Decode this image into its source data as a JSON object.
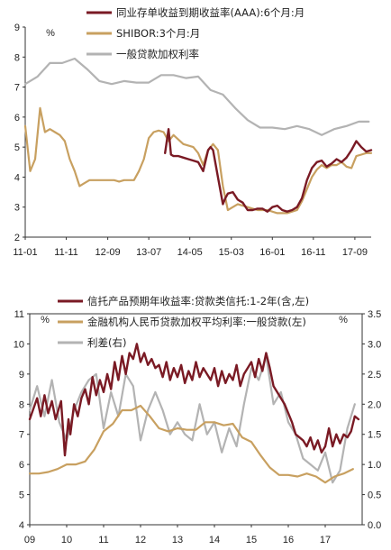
{
  "chart_data": [
    {
      "type": "line",
      "y_unit": "%",
      "ylim": [
        2,
        9
      ],
      "yticks": [
        2,
        3,
        4,
        5,
        6,
        7,
        8,
        9
      ],
      "xlim": [
        2011.0,
        2018.0
      ],
      "xticks": [
        "11-01",
        "11-11",
        "12-09",
        "13-07",
        "14-05",
        "15-03",
        "16-01",
        "16-11",
        "17-09"
      ],
      "xtick_positions": [
        2011.0,
        2011.83,
        2012.67,
        2013.5,
        2014.33,
        2015.17,
        2016.0,
        2016.83,
        2017.67
      ],
      "grid": false,
      "legend_position": "top-right",
      "series": [
        {
          "name": "同业存单收益到期收益率(AAA):6个月:月",
          "color": "#7a1a24",
          "x": [
            2013.83,
            2013.9,
            2013.95,
            2014.0,
            2014.1,
            2014.2,
            2014.3,
            2014.4,
            2014.5,
            2014.6,
            2014.7,
            2014.75,
            2014.8,
            2014.9,
            2015.0,
            2015.05,
            2015.1,
            2015.2,
            2015.3,
            2015.35,
            2015.4,
            2015.5,
            2015.6,
            2015.7,
            2015.8,
            2015.9,
            2016.0,
            2016.1,
            2016.2,
            2016.3,
            2016.4,
            2016.5,
            2016.6,
            2016.7,
            2016.8,
            2016.9,
            2017.0,
            2017.1,
            2017.2,
            2017.3,
            2017.4,
            2017.5,
            2017.6,
            2017.7,
            2017.8,
            2017.9,
            2018.0
          ],
          "values": [
            4.8,
            5.6,
            4.75,
            4.7,
            4.7,
            4.65,
            4.6,
            4.55,
            4.5,
            4.2,
            4.9,
            5.0,
            4.9,
            4.0,
            3.1,
            3.3,
            3.45,
            3.5,
            3.25,
            3.2,
            3.15,
            2.9,
            2.9,
            2.95,
            2.95,
            2.85,
            3.0,
            3.05,
            2.9,
            2.85,
            2.9,
            3.0,
            3.3,
            3.9,
            4.3,
            4.5,
            4.55,
            4.35,
            4.45,
            4.6,
            4.5,
            4.65,
            4.9,
            5.2,
            5.0,
            4.85,
            4.9
          ]
        },
        {
          "name": "SHIBOR:3个月:月",
          "color": "#c8a060",
          "x": [
            2011.0,
            2011.1,
            2011.2,
            2011.3,
            2011.4,
            2011.5,
            2011.6,
            2011.7,
            2011.8,
            2011.9,
            2012.0,
            2012.1,
            2012.2,
            2012.3,
            2012.4,
            2012.5,
            2012.6,
            2012.7,
            2012.8,
            2012.9,
            2013.0,
            2013.1,
            2013.2,
            2013.3,
            2013.4,
            2013.5,
            2013.6,
            2013.7,
            2013.8,
            2013.9,
            2014.0,
            2014.2,
            2014.4,
            2014.5,
            2014.6,
            2014.7,
            2014.8,
            2014.9,
            2015.0,
            2015.1,
            2015.2,
            2015.3,
            2015.5,
            2015.7,
            2015.9,
            2016.1,
            2016.3,
            2016.5,
            2016.6,
            2016.7,
            2016.8,
            2016.9,
            2017.0,
            2017.1,
            2017.2,
            2017.3,
            2017.4,
            2017.5,
            2017.6,
            2017.7,
            2017.8,
            2017.9,
            2018.0
          ],
          "values": [
            5.7,
            4.2,
            4.6,
            6.3,
            5.5,
            5.6,
            5.5,
            5.4,
            5.2,
            4.6,
            4.2,
            3.7,
            3.8,
            3.9,
            3.9,
            3.9,
            3.9,
            3.9,
            3.9,
            3.85,
            3.9,
            3.9,
            3.9,
            4.2,
            4.6,
            5.3,
            5.5,
            5.55,
            5.5,
            5.2,
            5.4,
            5.1,
            5.0,
            4.8,
            4.4,
            4.9,
            5.1,
            4.9,
            3.7,
            2.9,
            3.0,
            3.1,
            3.0,
            2.9,
            2.9,
            2.8,
            2.8,
            2.9,
            3.2,
            3.6,
            4.0,
            4.25,
            4.4,
            4.3,
            4.4,
            4.4,
            4.5,
            4.35,
            4.3,
            4.7,
            4.75,
            4.8,
            4.8
          ]
        },
        {
          "name": "一般贷款加权利率",
          "color": "#b3b3b3",
          "x": [
            2011.0,
            2011.25,
            2011.5,
            2011.75,
            2012.0,
            2012.25,
            2012.5,
            2012.75,
            2013.0,
            2013.25,
            2013.5,
            2013.75,
            2014.0,
            2014.25,
            2014.5,
            2014.75,
            2015.0,
            2015.25,
            2015.5,
            2015.75,
            2016.0,
            2016.25,
            2016.5,
            2016.75,
            2017.0,
            2017.25,
            2017.5,
            2017.75,
            2017.95
          ],
          "values": [
            7.1,
            7.35,
            7.8,
            7.8,
            7.95,
            7.6,
            7.2,
            7.1,
            7.2,
            7.15,
            7.15,
            7.4,
            7.4,
            7.3,
            7.35,
            6.9,
            6.75,
            6.3,
            5.9,
            5.65,
            5.65,
            5.6,
            5.7,
            5.6,
            5.4,
            5.6,
            5.7,
            5.85,
            5.85
          ]
        }
      ]
    },
    {
      "type": "line",
      "y_unit": "%",
      "y2_unit": "%",
      "ylim": [
        4,
        11
      ],
      "yticks": [
        4,
        5,
        6,
        7,
        8,
        9,
        10,
        11
      ],
      "y2lim": [
        0.0,
        3.5
      ],
      "y2ticks": [
        "0.0",
        "0.5",
        "1.0",
        "1.5",
        "2.0",
        "2.5",
        "3.0",
        "3.5"
      ],
      "xlim": [
        2009.0,
        2018.0
      ],
      "xticks": [
        "09",
        "10",
        "11",
        "12",
        "13",
        "14",
        "15",
        "16",
        "17"
      ],
      "xtick_positions": [
        2009,
        2010,
        2011,
        2012,
        2013,
        2014,
        2015,
        2016,
        2017
      ],
      "grid": false,
      "legend_position": "top",
      "series": [
        {
          "name": "信托产品预期年收益率:贷款类信托:1-2年(含,左)",
          "color": "#7a1a24",
          "axis": "left",
          "x": [
            2009.0,
            2009.2,
            2009.3,
            2009.4,
            2009.5,
            2009.6,
            2009.7,
            2009.85,
            2009.95,
            2010.05,
            2010.1,
            2010.2,
            2010.3,
            2010.4,
            2010.5,
            2010.6,
            2010.7,
            2010.8,
            2010.9,
            2011.0,
            2011.1,
            2011.2,
            2011.3,
            2011.4,
            2011.5,
            2011.6,
            2011.7,
            2011.8,
            2011.9,
            2012.0,
            2012.1,
            2012.2,
            2012.3,
            2012.4,
            2012.5,
            2012.6,
            2012.7,
            2012.8,
            2012.9,
            2013.0,
            2013.1,
            2013.2,
            2013.3,
            2013.4,
            2013.5,
            2013.6,
            2013.7,
            2013.8,
            2013.9,
            2014.0,
            2014.1,
            2014.2,
            2014.3,
            2014.4,
            2014.5,
            2014.6,
            2014.7,
            2014.8,
            2014.9,
            2015.0,
            2015.1,
            2015.2,
            2015.3,
            2015.4,
            2015.5,
            2015.6,
            2015.7,
            2015.8,
            2015.9,
            2016.0,
            2016.1,
            2016.2,
            2016.3,
            2016.4,
            2016.5,
            2016.6,
            2016.7,
            2016.8,
            2016.9,
            2017.0,
            2017.1,
            2017.2,
            2017.3,
            2017.4,
            2017.5,
            2017.6,
            2017.7,
            2017.8,
            2017.9
          ],
          "values": [
            7.5,
            8.2,
            7.6,
            8.3,
            7.7,
            8.1,
            7.5,
            8.1,
            6.3,
            7.5,
            7.0,
            8.0,
            7.6,
            8.2,
            8.5,
            8.0,
            8.9,
            8.3,
            8.8,
            8.4,
            9.0,
            8.5,
            9.4,
            8.8,
            9.6,
            9.0,
            9.7,
            9.5,
            10.0,
            9.4,
            9.7,
            9.3,
            9.5,
            9.2,
            9.3,
            8.9,
            9.4,
            8.8,
            9.2,
            8.9,
            9.3,
            8.7,
            9.1,
            8.8,
            9.4,
            8.9,
            9.2,
            9.0,
            8.8,
            9.2,
            8.6,
            9.1,
            8.7,
            9.0,
            8.8,
            9.3,
            8.6,
            9.0,
            9.2,
            9.4,
            8.9,
            9.5,
            9.1,
            9.7,
            9.2,
            8.6,
            8.4,
            8.2,
            8.0,
            7.7,
            7.4,
            7.0,
            6.9,
            6.8,
            6.6,
            6.9,
            6.5,
            6.8,
            6.4,
            6.6,
            7.2,
            6.6,
            7.0,
            6.7,
            7.0,
            6.9,
            7.1,
            7.6,
            7.5
          ]
        },
        {
          "name": "金融机构人民币贷款加权平均利率:一般贷款(左)",
          "color": "#c8a060",
          "axis": "left",
          "x": [
            2009.0,
            2009.25,
            2009.5,
            2009.75,
            2010.0,
            2010.25,
            2010.5,
            2010.75,
            2011.0,
            2011.25,
            2011.5,
            2011.75,
            2012.0,
            2012.25,
            2012.5,
            2012.75,
            2013.0,
            2013.25,
            2013.5,
            2013.75,
            2014.0,
            2014.25,
            2014.5,
            2014.75,
            2015.0,
            2015.25,
            2015.5,
            2015.75,
            2016.0,
            2016.25,
            2016.5,
            2016.75,
            2017.0,
            2017.25,
            2017.5,
            2017.75
          ],
          "values": [
            5.7,
            5.7,
            5.75,
            5.85,
            6.0,
            6.0,
            6.1,
            6.5,
            7.1,
            7.35,
            7.8,
            7.8,
            7.95,
            7.6,
            7.2,
            7.1,
            7.2,
            7.15,
            7.15,
            7.4,
            7.4,
            7.3,
            7.35,
            6.9,
            6.75,
            6.3,
            5.9,
            5.65,
            5.65,
            5.6,
            5.7,
            5.6,
            5.4,
            5.6,
            5.7,
            5.85
          ]
        },
        {
          "name": "利差(右)",
          "color": "#b3b3b3",
          "axis": "right",
          "x": [
            2009.0,
            2009.2,
            2009.4,
            2009.6,
            2009.8,
            2010.0,
            2010.2,
            2010.4,
            2010.6,
            2010.8,
            2011.0,
            2011.2,
            2011.4,
            2011.6,
            2011.8,
            2012.0,
            2012.2,
            2012.4,
            2012.6,
            2012.8,
            2013.0,
            2013.2,
            2013.4,
            2013.6,
            2013.8,
            2014.0,
            2014.2,
            2014.4,
            2014.6,
            2014.8,
            2015.0,
            2015.2,
            2015.4,
            2015.6,
            2015.8,
            2016.0,
            2016.2,
            2016.4,
            2016.6,
            2016.8,
            2017.0,
            2017.2,
            2017.4,
            2017.6,
            2017.8
          ],
          "values": [
            1.9,
            2.3,
            1.8,
            2.4,
            1.7,
            1.4,
            1.9,
            2.2,
            2.4,
            2.5,
            1.6,
            2.2,
            1.8,
            2.5,
            2.3,
            1.4,
            1.9,
            2.2,
            1.9,
            1.5,
            1.7,
            1.5,
            1.4,
            2.0,
            1.5,
            1.7,
            1.2,
            1.6,
            1.3,
            2.0,
            2.6,
            2.4,
            2.8,
            2.0,
            2.2,
            1.7,
            1.5,
            1.1,
            1.0,
            0.9,
            1.2,
            0.7,
            0.9,
            1.6,
            2.0
          ]
        }
      ]
    }
  ]
}
